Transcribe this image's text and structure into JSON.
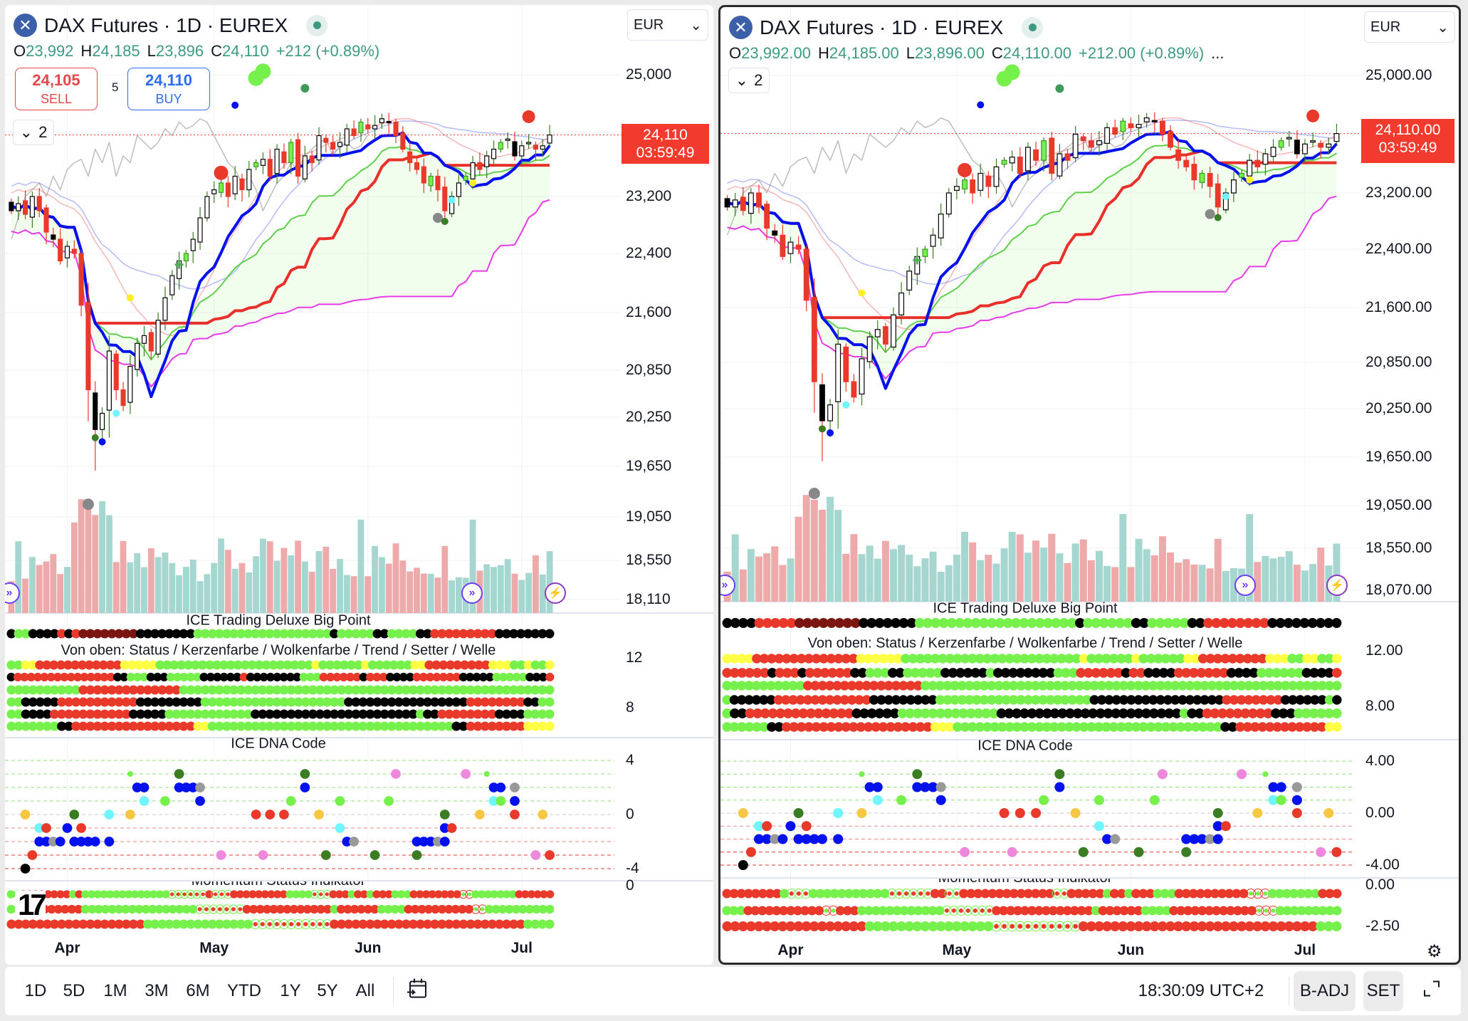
{
  "symbol": {
    "title": "DAX Futures · 1D · EUREX",
    "icon": "x-logo-icon"
  },
  "left": {
    "ohlc": {
      "o_label": "O",
      "o": "23,992",
      "h_label": "H",
      "h": "24,185",
      "l_label": "L",
      "l": "23,896",
      "c_label": "C",
      "c": "24,110",
      "change": "+212 (+0.89%)"
    },
    "currency": "EUR",
    "sell_price": "24,105",
    "sell_label": "SELL",
    "spread": "5",
    "buy_price": "24,110",
    "buy_label": "BUY",
    "collapse_count": "2",
    "price_ticks": [
      "25,000",
      "23,200",
      "22,400",
      "21,600",
      "20,850",
      "20,250",
      "19,650",
      "19,050",
      "18,550",
      "18,110"
    ],
    "last_price": "24,110",
    "countdown": "03:59:49",
    "bigpoint_axis": [
      "12",
      "8"
    ],
    "dna_axis": [
      "4",
      "0",
      "-4"
    ],
    "momentum_axis": [
      "0"
    ],
    "rows": {
      "bigpoint": "K1G2K4R1K1R1D8K8G19K1G5K2G4K2R9K8",
      "lines": [
        "G2Y2R12Y5G22Y1G6Y1G6Y2R9Y3G2Y1G2Y1",
        "K1R15K2G3K3G5K6R1K8G3R6K1R3K4R7K5G5K3R1",
        "G10R14G52",
        "G2K5R11K9G20K17R8K2G2",
        "G2K4R11K5G12K23G1K2R8K4G4",
        "G7K2R17Y2G34K2R8Y4"
      ],
      "momentum": [
        "G2R8G1R1G14r6R1r3R9G4r3R3G1R2G1R3G3R8g2G7R6",
        "G3R8G17r7R13G1R6G4R10g2G10",
        "R19G15r11R27G4"
      ]
    }
  },
  "right": {
    "ohlc": {
      "o_label": "O",
      "o": "23,992.00",
      "h_label": "H",
      "h": "24,185.00",
      "l_label": "L",
      "l": "23,896.00",
      "c_label": "C",
      "c": "24,110.00",
      "change": "+212.00 (+0.89%)",
      "more": "..."
    },
    "currency": "EUR",
    "collapse_count": "2",
    "price_ticks": [
      "25,000.00",
      "23,200.00",
      "22,400.00",
      "21,600.00",
      "20,850.00",
      "20,250.00",
      "19,650.00",
      "19,050.00",
      "18,550.00",
      "18,070.00"
    ],
    "last_price": "24,110.00",
    "countdown": "03:59:49",
    "bigpoint_axis": [
      "12.00",
      "8.00"
    ],
    "dna_axis": [
      "4.00",
      "0.00",
      "-4.00"
    ],
    "momentum_axis": [
      "0.00",
      "-2.50"
    ],
    "rows": {
      "bigpoint": "K4R5D8K7G20K1G6K2G5K2R8K9",
      "lines": [
        "Y4R14Y6G24Y1G6Y1G6Y2R9Y3G2Y2G2Y1",
        "R6K1R3K1R6K2G3K2G5K6G1K8G3R6K1R2K4R7K4G6K4R1",
        "G11R16G57",
        "G1K6R13K9G21K18R8K6G1K1",
        "G1K2R14K6G13K24G1K2R9K3G6",
        "G6K2R20Y3G36K2R12Y2"
      ],
      "momentum": [
        "R8G1r3G11r6R2r2R13r2R5G1R2G1R3G3R10g3G1G6R3",
        "G3R11g2R3G12r7R14G1R6G4R12g3G9",
        "R18G16r11R30G3"
      ]
    }
  },
  "indicators": {
    "bigpoint": "ICE Trading Deluxe Big Point",
    "rows_title": "Von oben: Status / Kerzenfarbe / Wolkenfarbe / Trend / Setter / Welle",
    "dna": "ICE DNA Code",
    "momentum": "Momentum Status Indikator"
  },
  "time_axis": [
    "Apr",
    "May",
    "Jun",
    "Jul"
  ],
  "price_series": {
    "closes": [
      23000,
      23100,
      22950,
      23200,
      23000,
      22700,
      22600,
      22300,
      22500,
      22400,
      21700,
      20600,
      20100,
      20300,
      21100,
      20600,
      20400,
      20900,
      21200,
      21300,
      21100,
      21500,
      21800,
      22100,
      22300,
      22400,
      22600,
      22900,
      23200,
      23300,
      23400,
      23200,
      23500,
      23300,
      23600,
      23700,
      23750,
      23500,
      23900,
      23700,
      24000,
      23500,
      23800,
      23700,
      24100,
      24000,
      23900,
      24000,
      24200,
      24100,
      24300,
      24200,
      24250,
      24350,
      24300,
      24100,
      23900,
      23700,
      23600,
      23400,
      23500,
      23300,
      23000,
      23200,
      23400,
      23500,
      23700,
      23600,
      23800,
      23900,
      24000,
      24050,
      23800,
      23950,
      24000,
      23900,
      23950,
      24110
    ],
    "last": 24110
  },
  "dna_points": [
    [
      17,
      3,
      "l"
    ],
    [
      24,
      3,
      "d"
    ],
    [
      42,
      3,
      "d"
    ],
    [
      55,
      3,
      "p"
    ],
    [
      65,
      3,
      "p"
    ],
    [
      68,
      3,
      "l"
    ],
    [
      18,
      2,
      "b"
    ],
    [
      19,
      2,
      "b"
    ],
    [
      24,
      2,
      "b"
    ],
    [
      25,
      2,
      "b"
    ],
    [
      26,
      2,
      "b"
    ],
    [
      27,
      2,
      "a"
    ],
    [
      42,
      2,
      "b"
    ],
    [
      69,
      2,
      "b"
    ],
    [
      70,
      2,
      "b"
    ],
    [
      72,
      2,
      "a"
    ],
    [
      19,
      1,
      "c"
    ],
    [
      22,
      1,
      "g"
    ],
    [
      27,
      1,
      "b"
    ],
    [
      40,
      1,
      "g"
    ],
    [
      47,
      1,
      "g"
    ],
    [
      54,
      1,
      "g"
    ],
    [
      69,
      1,
      "c"
    ],
    [
      70,
      1,
      "g"
    ],
    [
      72,
      1,
      "b"
    ],
    [
      2,
      0,
      "o"
    ],
    [
      9,
      0,
      "d"
    ],
    [
      14,
      0,
      "c"
    ],
    [
      17,
      0,
      "o"
    ],
    [
      35,
      0,
      "r"
    ],
    [
      37,
      0,
      "r"
    ],
    [
      39,
      0,
      "r"
    ],
    [
      44,
      0,
      "o"
    ],
    [
      62,
      0,
      "d"
    ],
    [
      67,
      0,
      "o"
    ],
    [
      72,
      0,
      "r"
    ],
    [
      76,
      0,
      "o"
    ],
    [
      4,
      -1,
      "c"
    ],
    [
      5,
      -1,
      "r"
    ],
    [
      8,
      -1,
      "b"
    ],
    [
      10,
      -1,
      "r"
    ],
    [
      47,
      -1,
      "c"
    ],
    [
      62,
      -1,
      "b"
    ],
    [
      63,
      -1,
      "r"
    ],
    [
      4,
      -2,
      "b"
    ],
    [
      5,
      -2,
      "b"
    ],
    [
      6,
      -2,
      "a"
    ],
    [
      7,
      -2,
      "b"
    ],
    [
      9,
      -2,
      "b"
    ],
    [
      10,
      -2,
      "b"
    ],
    [
      11,
      -2,
      "b"
    ],
    [
      12,
      -2,
      "b"
    ],
    [
      14,
      -2,
      "b"
    ],
    [
      48,
      -2,
      "b"
    ],
    [
      49,
      -2,
      "a"
    ],
    [
      58,
      -2,
      "b"
    ],
    [
      59,
      -2,
      "b"
    ],
    [
      60,
      -2,
      "b"
    ],
    [
      61,
      -2,
      "a"
    ],
    [
      62,
      -2,
      "b"
    ],
    [
      3,
      -3,
      "r"
    ],
    [
      30,
      -3,
      "p"
    ],
    [
      36,
      -3,
      "p"
    ],
    [
      45,
      -3,
      "d"
    ],
    [
      52,
      -3,
      "d"
    ],
    [
      58,
      -3,
      "d"
    ],
    [
      75,
      -3,
      "p"
    ],
    [
      77,
      -3,
      "r"
    ],
    [
      2,
      -4,
      "k"
    ]
  ],
  "bottom": {
    "ranges": [
      "1D",
      "5D",
      "1M",
      "3M",
      "6M",
      "YTD",
      "1Y",
      "5Y",
      "All"
    ],
    "clock": "18:30:09 UTC+2",
    "badj": "B-ADJ",
    "set": "SET"
  },
  "colors": {
    "up_green": "#76f04a",
    "down_red": "#e8392b",
    "black": "#000000",
    "yellow": "#ffff44",
    "dark_red": "#7a1510",
    "blue": "#0011ee",
    "kijun_red": "#e8302a",
    "accent_teal": "#3d9a82",
    "price_tag": "#f23b2e"
  }
}
